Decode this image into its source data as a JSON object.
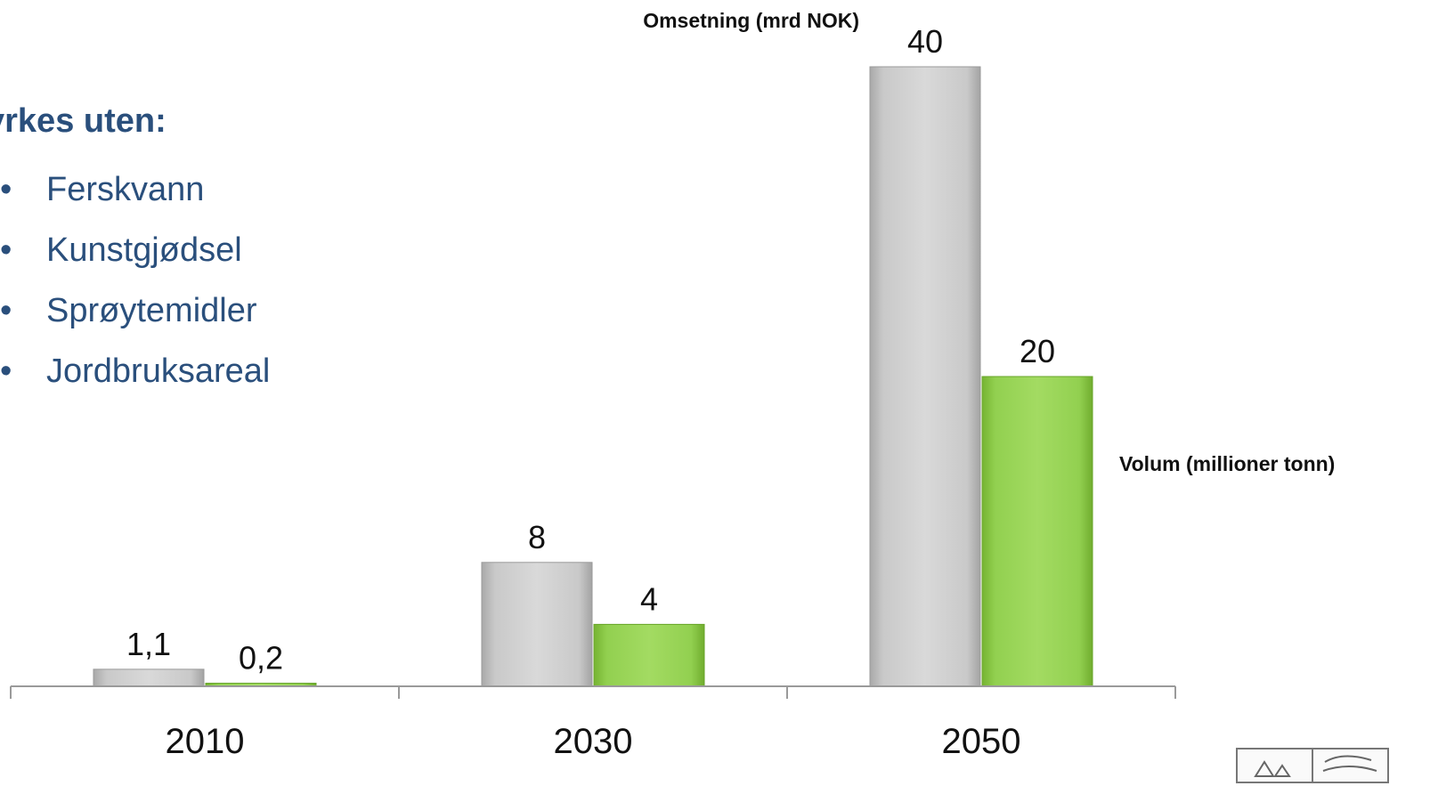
{
  "heading": "yrkes uten:",
  "bullets": [
    "Ferskvann",
    "Kunstgjødsel",
    "Sprøytemidler",
    "Jordbruksareal"
  ],
  "colors": {
    "text_blue": "#2a4f7c",
    "series_gray": "#c8c8c8",
    "series_green": "#92d050",
    "axis": "#9a9a9a"
  },
  "logo": {
    "icon": "emblem-icon"
  },
  "chart_data": {
    "type": "bar",
    "categories": [
      "2010",
      "2030",
      "2050"
    ],
    "series": [
      {
        "name": "Omsetning (mrd NOK)",
        "values": [
          1.1,
          8,
          40
        ],
        "labels": [
          "1,1",
          "8",
          "40"
        ],
        "color": "#c8c8c8"
      },
      {
        "name": "Volum (millioner tonn)",
        "values": [
          0.2,
          4,
          20
        ],
        "labels": [
          "0,2",
          "4",
          "20"
        ],
        "color": "#92d050"
      }
    ],
    "ylim": [
      0,
      40
    ],
    "grid": false,
    "legend": "series names printed beside the 2050 bars"
  }
}
